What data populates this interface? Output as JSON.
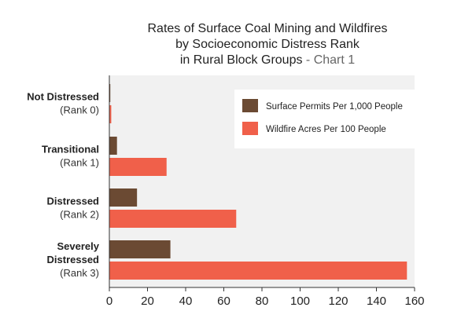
{
  "chart_data": {
    "type": "bar",
    "orientation": "horizontal",
    "title": [
      "Rates of Surface Coal Mining and Wildfires",
      "by Socioeconomic Distress Rank"
    ],
    "title_line3_main": "in Rural Block Groups",
    "title_line3_suffix": " - Chart 1",
    "categories": [
      {
        "name_lines": [
          "Not Distressed"
        ],
        "rank": "(Rank 0)"
      },
      {
        "name_lines": [
          "Transitional"
        ],
        "rank": "(Rank 1)"
      },
      {
        "name_lines": [
          "Distressed"
        ],
        "rank": "(Rank 2)"
      },
      {
        "name_lines": [
          "Severely",
          "Distressed"
        ],
        "rank": "(Rank 3)"
      }
    ],
    "series": [
      {
        "name": "Surface Permits Per 1,000 People",
        "color": "#6b4a33",
        "values": [
          0.5,
          4,
          14.5,
          32
        ]
      },
      {
        "name": "Wildfire Acres Per 100 People",
        "color": "#f0604a",
        "values": [
          1,
          30,
          66.5,
          156
        ]
      }
    ],
    "xlim": [
      0,
      160
    ],
    "xticks": [
      "0",
      "20",
      "40",
      "60",
      "80",
      "100",
      "120",
      "140",
      "160"
    ],
    "xlabel": "",
    "ylabel": "",
    "grid": false,
    "legend_position": "top-right",
    "plot_background": "#f1f1f1"
  }
}
